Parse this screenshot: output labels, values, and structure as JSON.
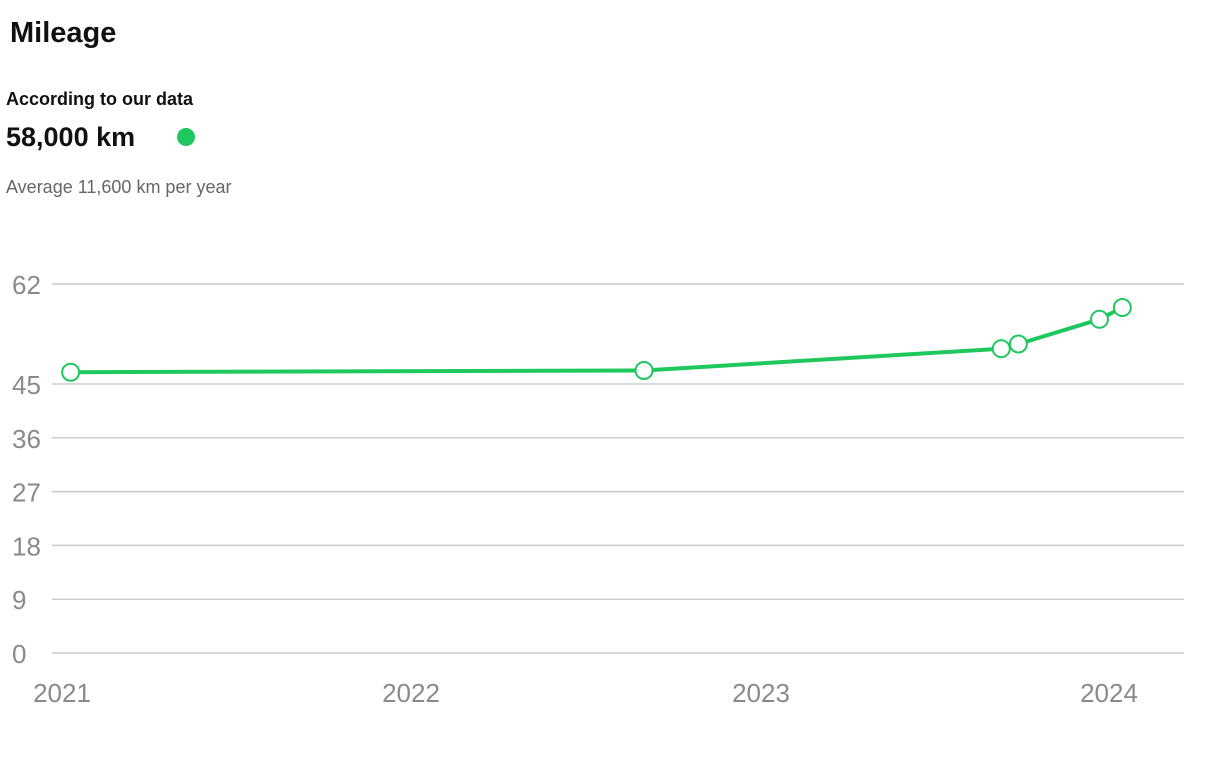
{
  "header": {
    "title": "Mileage",
    "source_label": "According to our data",
    "mileage": "58,000 km",
    "average": "Average 11,600 km per year"
  },
  "colors": {
    "line": "#1ec85f",
    "status_dot": "#1ec85f",
    "grid": "#cccccc",
    "tick_text": "#8a8a8a"
  },
  "chart_data": {
    "type": "line",
    "title": "",
    "xlabel": "",
    "ylabel": "",
    "ylim": [
      0,
      62
    ],
    "xlim": [
      "2021-01-01",
      "2024-03-15"
    ],
    "y_ticks": [
      0,
      9,
      18,
      27,
      36,
      45,
      62
    ],
    "x_ticks": [
      {
        "date": "2021-01-01",
        "label": "2021"
      },
      {
        "date": "2022-01-01",
        "label": "2022"
      },
      {
        "date": "2023-01-01",
        "label": "2023"
      },
      {
        "date": "2024-01-01",
        "label": "2024"
      }
    ],
    "grid": true,
    "series": [
      {
        "points": [
          {
            "x": "2021-01-10",
            "y": 47.0
          },
          {
            "x": "2022-09-01",
            "y": 47.3
          },
          {
            "x": "2023-09-10",
            "y": 51.0
          },
          {
            "x": "2023-09-28",
            "y": 51.8
          },
          {
            "x": "2023-12-22",
            "y": 56.0
          },
          {
            "x": "2024-01-15",
            "y": 58.0
          }
        ]
      }
    ]
  }
}
